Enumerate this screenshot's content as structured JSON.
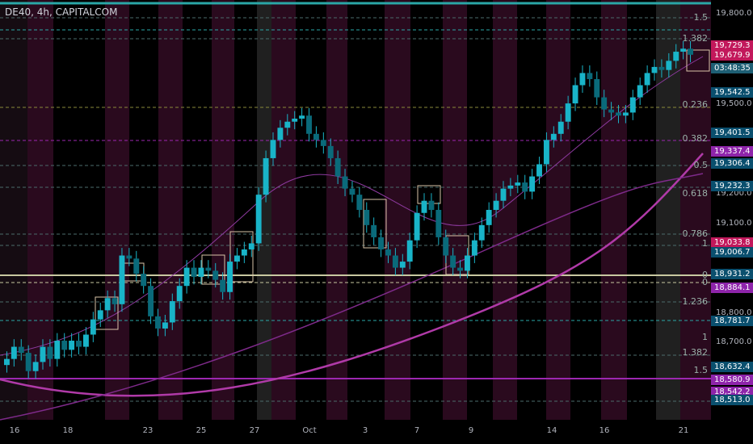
{
  "header": {
    "symbol": "DE40, 4h, CAPITALCOM"
  },
  "chart_data": {
    "type": "candlestick",
    "x_ticks": [
      "16",
      "18",
      "23",
      "25",
      "27",
      "Oct",
      "3",
      "7",
      "9",
      "14",
      "16",
      "21"
    ],
    "y_ticks": [
      "19,800.0",
      "19,500.0",
      "19,200.0",
      "19,100.0",
      "18,800.0",
      "18,700.0"
    ],
    "ylim": [
      18460,
      19840
    ],
    "fib_levels": [
      "1.5",
      "1.382",
      "0.236",
      "0.382",
      "0.5",
      "0.618",
      "0.786",
      "1",
      "0",
      "0",
      "1.236",
      "1",
      "1.382",
      "1.5"
    ],
    "price_tags": [
      {
        "text": "19,729.3",
        "color": "#c2185b"
      },
      {
        "text": "19,679.9",
        "color": "#c2185b"
      },
      {
        "text": "03:48:35",
        "color": "#1e5f74"
      },
      {
        "text": "19,542.5",
        "color": "#0a4f6e"
      },
      {
        "text": "19,401.5",
        "color": "#0a4f6e"
      },
      {
        "text": "19,337.4",
        "color": "#8e24aa"
      },
      {
        "text": "19,306.4",
        "color": "#0a4f6e"
      },
      {
        "text": "19,232.3",
        "color": "#0a4f6e"
      },
      {
        "text": "19,033.8",
        "color": "#c2185b"
      },
      {
        "text": "19,006.7",
        "color": "#0a4f6e"
      },
      {
        "text": "18,931.2",
        "color": "#0a4f6e"
      },
      {
        "text": "18,884.1",
        "color": "#8e24aa"
      },
      {
        "text": "18,781.7",
        "color": "#0a4f6e"
      },
      {
        "text": "18,632.4",
        "color": "#0a4f6e"
      },
      {
        "text": "18,580.9",
        "color": "#8e24aa"
      },
      {
        "text": "18,542.2",
        "color": "#8e24aa"
      },
      {
        "text": "18,513.0",
        "color": "#0a4f6e"
      }
    ],
    "closes": [
      18660,
      18700,
      18680,
      18620,
      18650,
      18700,
      18660,
      18720,
      18690,
      18720,
      18700,
      18740,
      18790,
      18820,
      18860,
      18840,
      19000,
      18990,
      18940,
      18900,
      18800,
      18760,
      18780,
      18850,
      18900,
      18960,
      18930,
      18960,
      18950,
      18920,
      18880,
      18980,
      19000,
      19020,
      19040,
      19200,
      19320,
      19380,
      19420,
      19440,
      19450,
      19460,
      19400,
      19380,
      19360,
      19320,
      19260,
      19220,
      19200,
      19150,
      19100,
      19060,
      19020,
      19000,
      18960,
      18980,
      19050,
      19140,
      19180,
      19150,
      19060,
      19000,
      18960,
      18950,
      19000,
      19050,
      19100,
      19150,
      19180,
      19220,
      19230,
      19240,
      19210,
      19260,
      19300,
      19380,
      19400,
      19440,
      19500,
      19560,
      19600,
      19580,
      19520,
      19480,
      19470,
      19460,
      19470,
      19520,
      19560,
      19600,
      19620,
      19610,
      19640,
      19670,
      19680,
      19660
    ]
  }
}
